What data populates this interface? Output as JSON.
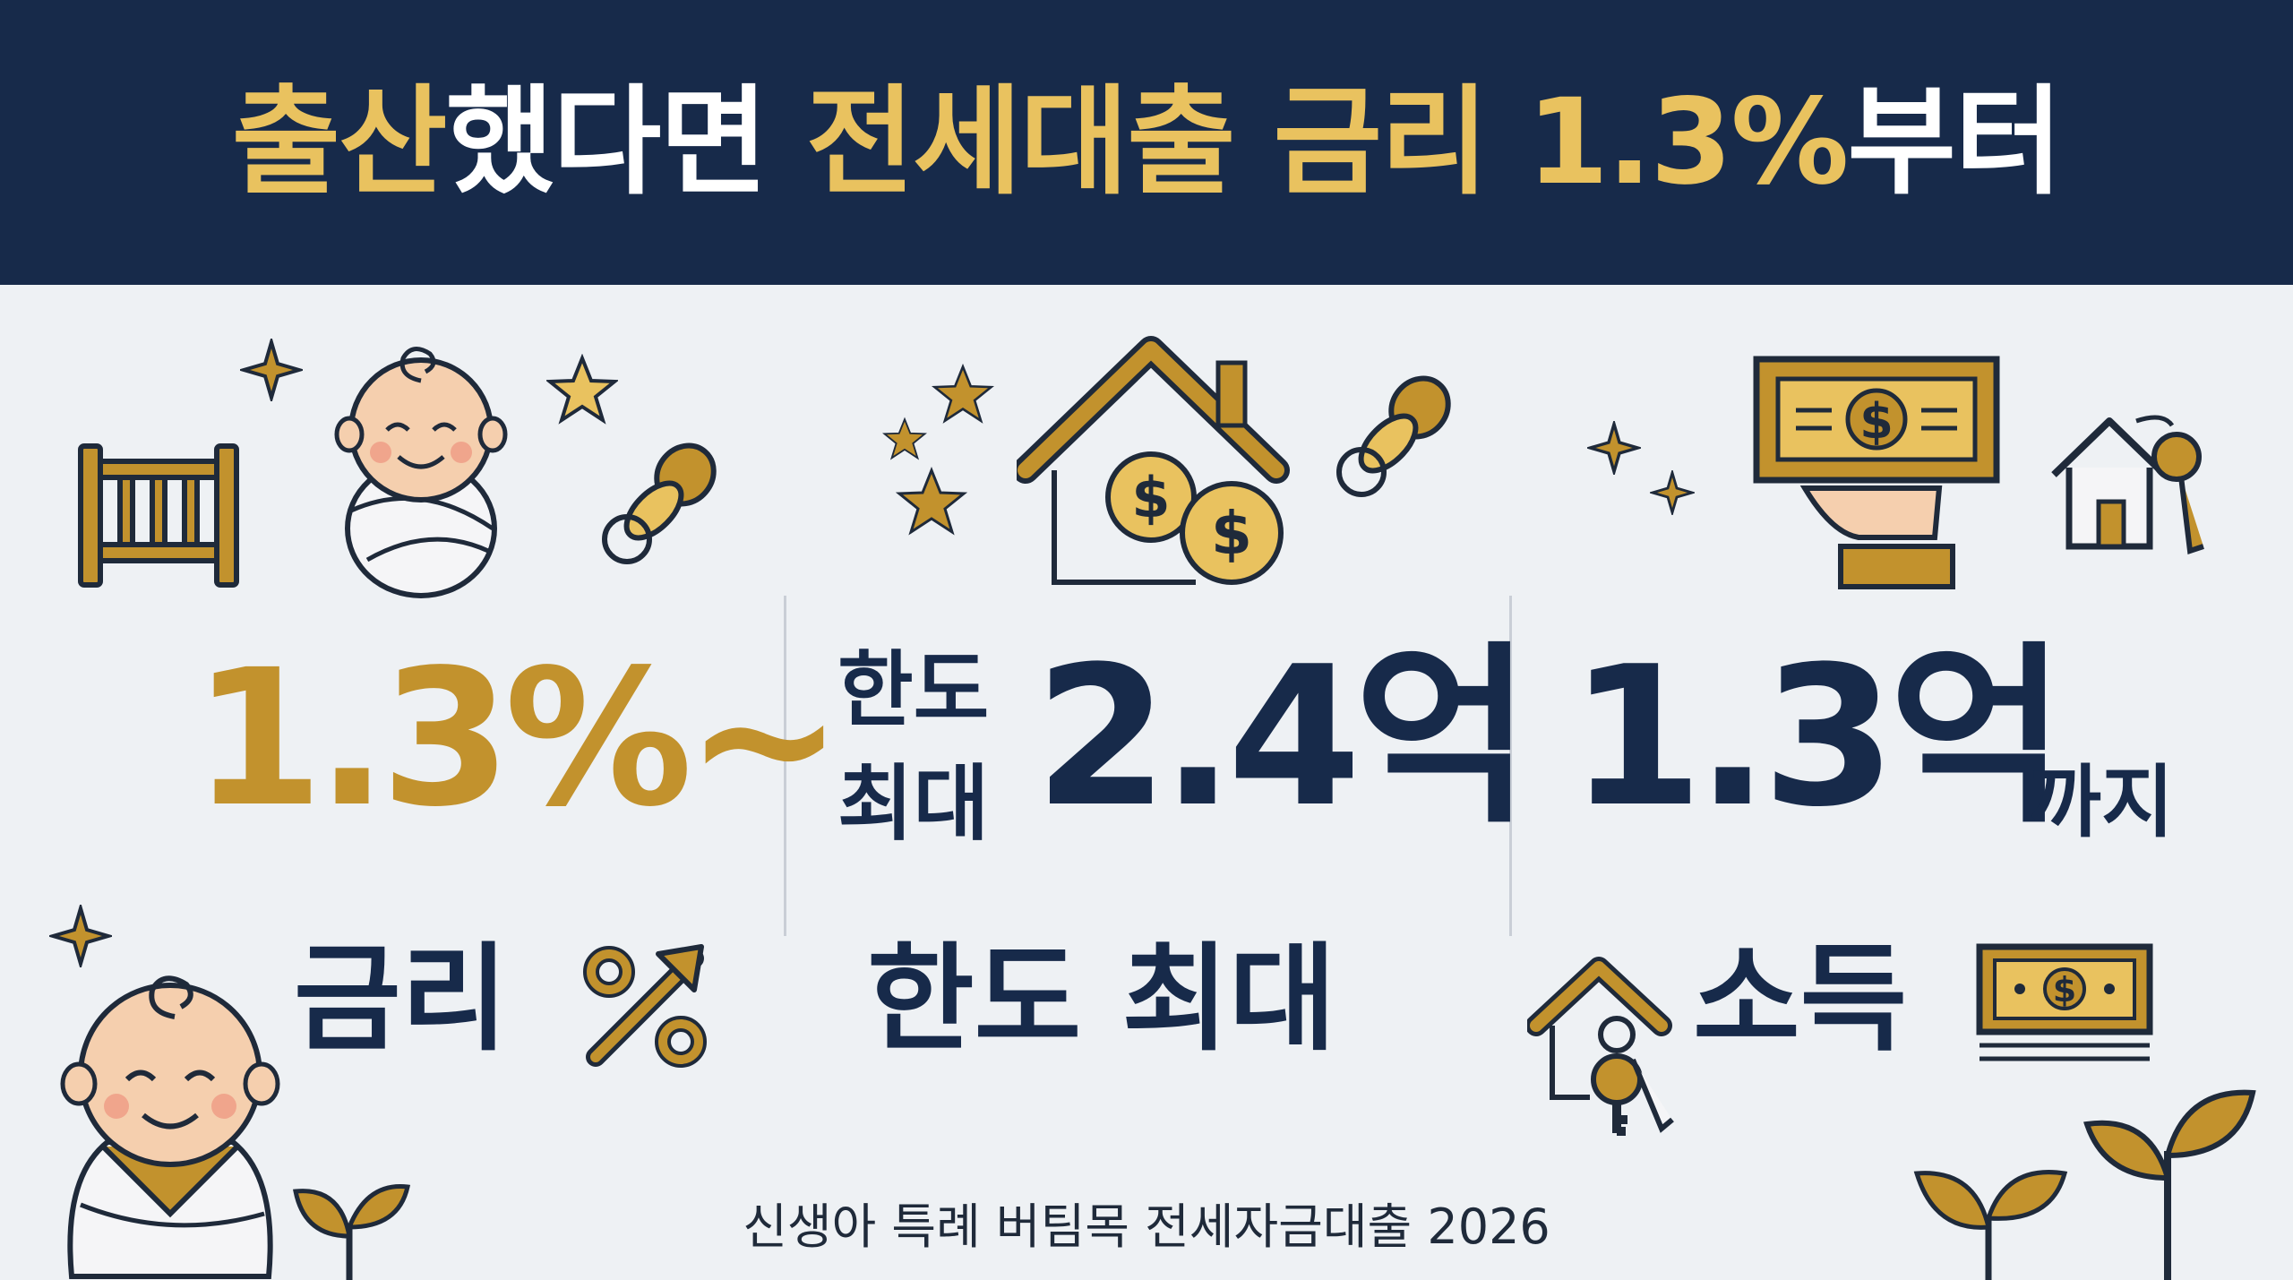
{
  "header": {
    "part1": "출산",
    "part2": "했다면",
    "part3": "전세대출 금리 1.3%",
    "part4": "부터"
  },
  "col1": {
    "rate": "1.3%~",
    "label": "금리"
  },
  "col2": {
    "prefix_line1": "한도",
    "prefix_line2": "최대",
    "amount": "2.4억",
    "label": "한도 최대"
  },
  "col3": {
    "amount": "1.3억",
    "suffix": "까지",
    "label": "소득"
  },
  "footer": {
    "text": "신생아 특례 버팀목 전세자금대출 2026"
  },
  "colors": {
    "navy": "#172a4a",
    "gold": "#c2922d",
    "header_gold": "#e9c25f",
    "background": "#eef1f4"
  },
  "icons": [
    "crib-icon",
    "baby-icon",
    "pacifier-icon",
    "star-icon",
    "sparkle-icon",
    "house-money-icon",
    "hand-cash-icon",
    "house-key-icon",
    "percent-arrow-icon",
    "banknote-icon",
    "sprout-icon"
  ]
}
